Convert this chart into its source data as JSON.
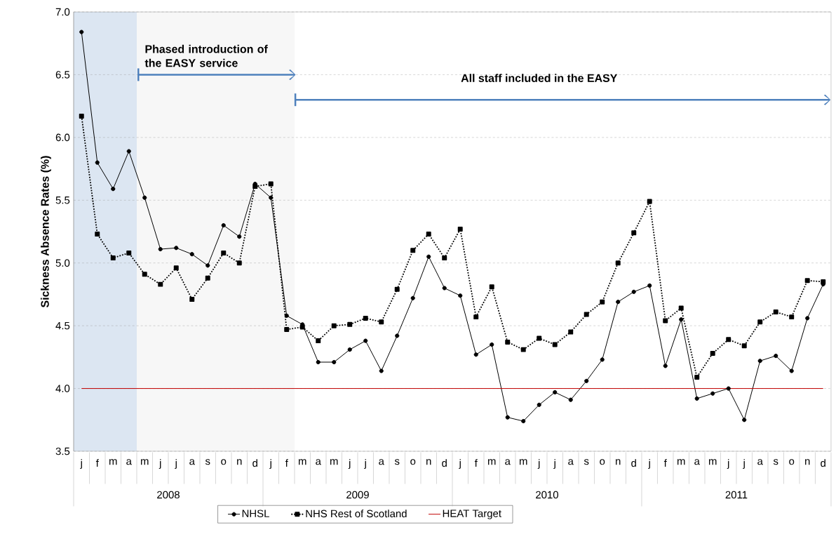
{
  "chart_data": {
    "type": "line",
    "ylabel": "Sickness Absence Rates (%)",
    "categories": [
      "j",
      "f",
      "m",
      "a",
      "m",
      "j",
      "j",
      "a",
      "s",
      "o",
      "n",
      "d",
      "j",
      "f",
      "m",
      "a",
      "m",
      "j",
      "j",
      "a",
      "s",
      "o",
      "n",
      "d",
      "j",
      "f",
      "m",
      "a",
      "m",
      "j",
      "j",
      "a",
      "s",
      "o",
      "n",
      "d",
      "j",
      "f",
      "m",
      "a",
      "m",
      "j",
      "j",
      "a",
      "s",
      "o",
      "n",
      "d"
    ],
    "series": [
      {
        "name": "NHSL",
        "color": "#000000",
        "marker": "circle",
        "line_style": "solid",
        "values": [
          6.84,
          5.8,
          5.59,
          5.89,
          5.52,
          5.11,
          5.12,
          5.07,
          4.98,
          5.3,
          5.21,
          5.63,
          5.52,
          4.58,
          4.51,
          4.21,
          4.21,
          4.31,
          4.38,
          4.14,
          4.42,
          4.72,
          5.05,
          4.8,
          4.74,
          4.27,
          4.35,
          3.77,
          3.74,
          3.87,
          3.97,
          3.91,
          4.06,
          4.23,
          4.69,
          4.77,
          4.82,
          4.18,
          4.55,
          3.92,
          3.96,
          4.0,
          3.75,
          4.22,
          4.26,
          4.14,
          4.56,
          4.83
        ]
      },
      {
        "name": "NHS Rest of Scotland",
        "color": "#000000",
        "marker": "square",
        "line_style": "dotted",
        "values": [
          6.17,
          5.23,
          5.04,
          5.08,
          4.91,
          4.83,
          4.96,
          4.71,
          4.88,
          5.08,
          5.0,
          5.61,
          5.63,
          4.47,
          4.49,
          4.38,
          4.5,
          4.51,
          4.56,
          4.53,
          4.79,
          5.1,
          5.23,
          5.04,
          5.27,
          4.57,
          4.81,
          4.37,
          4.31,
          4.4,
          4.35,
          4.45,
          4.59,
          4.69,
          5.0,
          5.24,
          5.49,
          4.54,
          4.64,
          4.09,
          4.28,
          4.39,
          4.34,
          4.53,
          4.61,
          4.57,
          4.86,
          4.85
        ]
      },
      {
        "name": "HEAT Target",
        "color": "#c00000",
        "marker": "none",
        "line_style": "solid",
        "values": [
          4.0,
          4.0,
          4.0,
          4.0,
          4.0,
          4.0,
          4.0,
          4.0,
          4.0,
          4.0,
          4.0,
          4.0,
          4.0,
          4.0,
          4.0,
          4.0,
          4.0,
          4.0,
          4.0,
          4.0,
          4.0,
          4.0,
          4.0,
          4.0,
          4.0,
          4.0,
          4.0,
          4.0,
          4.0,
          4.0,
          4.0,
          4.0,
          4.0,
          4.0,
          4.0,
          4.0,
          4.0,
          4.0,
          4.0,
          4.0,
          4.0,
          4.0,
          4.0,
          4.0,
          4.0,
          4.0,
          4.0,
          4.0
        ]
      }
    ],
    "ylim": [
      3.5,
      7.0
    ],
    "yticks": [
      {
        "value": 3.5,
        "label": "3.5"
      },
      {
        "value": 4.0,
        "label": "4.0"
      },
      {
        "value": 4.5,
        "label": "4.5"
      },
      {
        "value": 5.0,
        "label": "5.0"
      },
      {
        "value": 5.5,
        "label": "5.5"
      },
      {
        "value": 6.0,
        "label": "6.0"
      },
      {
        "value": 6.5,
        "label": "6.5"
      },
      {
        "value": 7.0,
        "label": "7.0"
      }
    ],
    "grid": "y",
    "legend": "bottom",
    "annotations": [
      "Phased introduction of the EASY service",
      "All staff included in the EASY",
      "2008",
      "2009",
      "2010",
      "2011"
    ]
  }
}
